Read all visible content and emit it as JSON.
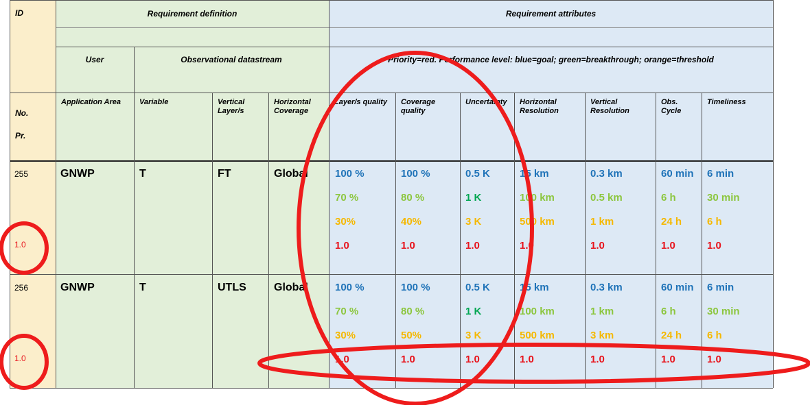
{
  "colors": {
    "goal": "#1f73b8",
    "breakthrough": "#8cc63e",
    "threshold": "#f5b800",
    "priority": "#e8141c",
    "one_k": "#00a651",
    "annotation": "#ee1c1c"
  },
  "header": {
    "id": "ID",
    "definition": "Requirement definition",
    "attributes": "Requirement attributes",
    "user": "User",
    "datastream": "Observational datastream",
    "legend": "Priority=red. Performance level: blue=goal; green=breakthrough; orange=threshold",
    "no": "No.",
    "pr": "Pr."
  },
  "columns": [
    "Application Area",
    "Variable",
    "Vertical Layer/s",
    "Horizontal Coverage",
    "Layer/s quality",
    "Coverage quality",
    "Uncertainty",
    "Horizontal Resolution",
    "Vertical Resolution",
    "Obs. Cycle",
    "Timeliness"
  ],
  "rows": [
    {
      "id": "255",
      "priority": "1.0",
      "app": "GNWP",
      "variable": "T",
      "layer": "FT",
      "coverage": "Global",
      "attrs": [
        {
          "goal": "100 %",
          "breakthrough": "70 %",
          "threshold": "30%",
          "priority": "1.0"
        },
        {
          "goal": "100 %",
          "breakthrough": "80 %",
          "threshold": "40%",
          "priority": "1.0"
        },
        {
          "goal": "0.5 K",
          "breakthrough": "1 K",
          "threshold": "3 K",
          "priority": "1.0"
        },
        {
          "goal": "15 km",
          "breakthrough": "100 km",
          "threshold": "500 km",
          "priority": "1.0"
        },
        {
          "goal": "0.3 km",
          "breakthrough": "0.5 km",
          "threshold": "1 km",
          "priority": "1.0"
        },
        {
          "goal": "60 min",
          "breakthrough": "6 h",
          "threshold": "24 h",
          "priority": "1.0"
        },
        {
          "goal": "6 min",
          "breakthrough": "30 min",
          "threshold": "6 h",
          "priority": "1.0"
        }
      ]
    },
    {
      "id": "256",
      "priority": "1.0",
      "app": "GNWP",
      "variable": "T",
      "layer": "UTLS",
      "coverage": "Global",
      "attrs": [
        {
          "goal": "100 %",
          "breakthrough": "70 %",
          "threshold": "30%",
          "priority": "1.0"
        },
        {
          "goal": "100 %",
          "breakthrough": "80 %",
          "threshold": "50%",
          "priority": "1.0"
        },
        {
          "goal": "0.5 K",
          "breakthrough": "1 K",
          "threshold": "3 K",
          "priority": "1.0"
        },
        {
          "goal": "15 km",
          "breakthrough": "100 km",
          "threshold": "500 km",
          "priority": "1.0"
        },
        {
          "goal": "0.3 km",
          "breakthrough": "1 km",
          "threshold": "3 km",
          "priority": "1.0"
        },
        {
          "goal": "60 min",
          "breakthrough": "6 h",
          "threshold": "24 h",
          "priority": "1.0"
        },
        {
          "goal": "6 min",
          "breakthrough": "30 min",
          "threshold": "6 h",
          "priority": "1.0"
        }
      ]
    }
  ]
}
